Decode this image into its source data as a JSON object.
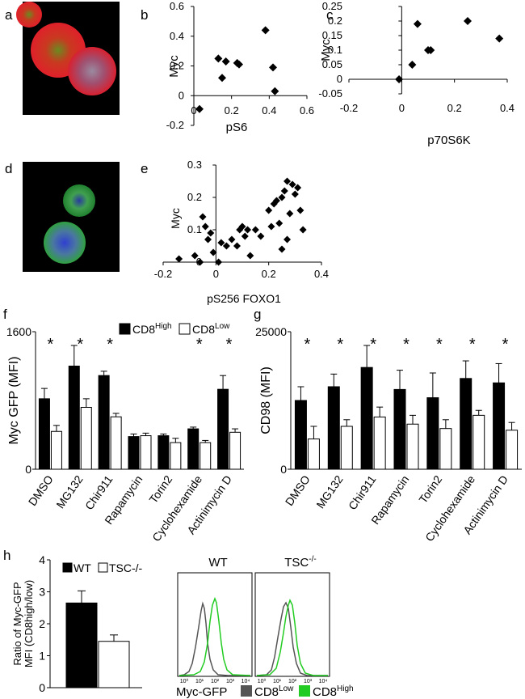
{
  "panel_labels": {
    "a": "a",
    "b": "b",
    "c": "c",
    "d": "d",
    "e": "e",
    "f": "f",
    "g": "g",
    "h": "h"
  },
  "colors": {
    "black": "#000000",
    "green": "#22cc22",
    "grey": "#555555",
    "red": "#e0202a",
    "blue": "#3040d0"
  },
  "chart_data": [
    {
      "id": "b",
      "type": "scatter",
      "title": "",
      "xlabel": "pS6",
      "ylabel": "Myc",
      "xlim": [
        0,
        0.6
      ],
      "ylim": [
        -0.2,
        0.6
      ],
      "xticks": [
        "0",
        "0.2",
        "0.4",
        "0.6"
      ],
      "xtick_values": [
        0,
        0.2,
        0.4,
        0.6
      ],
      "yticks": [
        "-0.2",
        "0",
        "0.2",
        "0.4",
        "0.6"
      ],
      "ytick_values": [
        -0.2,
        0,
        0.2,
        0.4,
        0.6
      ],
      "points": [
        [
          0.03,
          -0.09
        ],
        [
          0.13,
          0.25
        ],
        [
          0.15,
          0.12
        ],
        [
          0.17,
          0.23
        ],
        [
          0.23,
          0.22
        ],
        [
          0.24,
          0.21
        ],
        [
          0.38,
          0.44
        ],
        [
          0.42,
          0.19
        ],
        [
          0.43,
          0.03
        ]
      ]
    },
    {
      "id": "c",
      "type": "scatter",
      "title": "",
      "xlabel": "p70S6K",
      "ylabel": "Myc",
      "xlim": [
        -0.2,
        0.4
      ],
      "ylim": [
        -0.05,
        0.25
      ],
      "xticks": [
        "-0.2",
        "0",
        "0.2",
        "0.4"
      ],
      "xtick_values": [
        -0.2,
        0,
        0.2,
        0.4
      ],
      "yticks": [
        "-0.05",
        "0",
        "0.05",
        "0.1",
        "0.15",
        "0.2",
        "0.25"
      ],
      "ytick_values": [
        -0.05,
        0,
        0.05,
        0.1,
        0.15,
        0.2,
        0.25
      ],
      "points": [
        [
          -0.01,
          0.0
        ],
        [
          0.04,
          0.05
        ],
        [
          0.06,
          0.19
        ],
        [
          0.1,
          0.1
        ],
        [
          0.11,
          0.1
        ],
        [
          0.25,
          0.2
        ],
        [
          0.37,
          0.14
        ]
      ]
    },
    {
      "id": "e",
      "type": "scatter",
      "title": "",
      "xlabel": "pS256 FOXO1",
      "ylabel": "Myc",
      "xlim": [
        -0.2,
        0.4
      ],
      "ylim": [
        0,
        0.3
      ],
      "xticks": [
        "-0.2",
        "0",
        "0.2",
        "0.4"
      ],
      "xtick_values": [
        -0.2,
        0,
        0.2,
        0.4
      ],
      "yticks": [
        "0",
        "0.1",
        "0.2",
        "0.3"
      ],
      "ytick_values": [
        0,
        0.1,
        0.2,
        0.3
      ],
      "points": [
        [
          -0.14,
          0.01
        ],
        [
          -0.08,
          0.02
        ],
        [
          -0.06,
          0.0
        ],
        [
          -0.05,
          0.14
        ],
        [
          -0.04,
          0.11
        ],
        [
          -0.03,
          0.07
        ],
        [
          -0.02,
          0.09
        ],
        [
          -0.01,
          0.03
        ],
        [
          0.01,
          0.0
        ],
        [
          0.02,
          0.06
        ],
        [
          0.04,
          0.05
        ],
        [
          0.06,
          0.07
        ],
        [
          0.08,
          0.05
        ],
        [
          0.09,
          0.1
        ],
        [
          0.1,
          0.11
        ],
        [
          0.11,
          0.08
        ],
        [
          0.12,
          0.1
        ],
        [
          0.13,
          0.02
        ],
        [
          0.15,
          0.1
        ],
        [
          0.17,
          0.08
        ],
        [
          0.2,
          0.16
        ],
        [
          0.21,
          0.11
        ],
        [
          0.22,
          0.18
        ],
        [
          0.23,
          0.19
        ],
        [
          0.24,
          0.12
        ],
        [
          0.25,
          0.2
        ],
        [
          0.26,
          0.22
        ],
        [
          0.27,
          0.25
        ],
        [
          0.28,
          0.15
        ],
        [
          0.29,
          0.24
        ],
        [
          0.3,
          0.21
        ],
        [
          0.31,
          0.23
        ],
        [
          0.32,
          0.16
        ],
        [
          0.33,
          0.1
        ],
        [
          0.25,
          0.04
        ],
        [
          0.27,
          0.07
        ]
      ]
    },
    {
      "id": "f",
      "type": "bar",
      "title": "",
      "xlabel": "",
      "ylabel": "Myc GFP (MFI)",
      "ylim": [
        0,
        1600
      ],
      "yticks": [
        "0",
        "1600"
      ],
      "ytick_values": [
        0,
        1600
      ],
      "categories": [
        "DMSO",
        "MG132",
        "Chir911",
        "Rapamycin",
        "Torin2",
        "Cyclohexamide",
        "Actinimycin D"
      ],
      "series": [
        {
          "name": "CD8",
          "sup": "High",
          "fill": "#000000",
          "values": [
            820,
            1200,
            1090,
            380,
            390,
            470,
            930
          ],
          "errors": [
            120,
            240,
            50,
            30,
            20,
            20,
            160
          ]
        },
        {
          "name": "CD8",
          "sup": "Low",
          "fill": "#ffffff",
          "values": [
            440,
            720,
            610,
            390,
            310,
            310,
            430
          ],
          "errors": [
            70,
            100,
            40,
            30,
            50,
            25,
            40
          ]
        }
      ],
      "significance": [
        "*",
        "*",
        "*",
        "",
        "",
        "*",
        "*"
      ]
    },
    {
      "id": "g",
      "type": "bar",
      "title": "",
      "xlabel": "",
      "ylabel": "CD98 (MFI)",
      "ylim": [
        0,
        25000
      ],
      "yticks": [
        "0",
        "25000"
      ],
      "ytick_values": [
        0,
        25000
      ],
      "categories": [
        "DMSO",
        "MG132",
        "Chir911",
        "Rapamycin",
        "Torin2",
        "Cyclohexamide",
        "Actinimycin D"
      ],
      "series": [
        {
          "name": "CD8",
          "sup": "High",
          "fill": "#000000",
          "values": [
            12500,
            15000,
            18500,
            14500,
            13000,
            16500,
            15700
          ],
          "errors": [
            2500,
            2300,
            4000,
            3500,
            4500,
            3200,
            3500
          ]
        },
        {
          "name": "CD8",
          "sup": "Low",
          "fill": "#ffffff",
          "values": [
            5500,
            7800,
            9500,
            8200,
            7400,
            9800,
            7100
          ],
          "errors": [
            2300,
            1200,
            1800,
            1600,
            1600,
            900,
            1400
          ]
        }
      ],
      "significance": [
        "*",
        "*",
        "*",
        "*",
        "*",
        "*",
        "*"
      ]
    },
    {
      "id": "h",
      "type": "bar",
      "title": "",
      "xlabel": "",
      "ylabel_lines": [
        "Ratio of Myc-GFP",
        "MFI (CD8high/low)"
      ],
      "ylim": [
        0,
        4
      ],
      "yticks": [
        "0",
        "1",
        "2",
        "3",
        "4"
      ],
      "ytick_values": [
        0,
        1,
        2,
        3,
        4
      ],
      "categories": [
        "WT",
        "TSC-/-"
      ],
      "values": [
        2.65,
        1.45
      ],
      "errors": [
        0.38,
        0.2
      ],
      "fills": [
        "#000000",
        "#ffffff"
      ],
      "legend": [
        "WT",
        "TSC-/-"
      ]
    }
  ],
  "histograms": {
    "titles": [
      {
        "base": "WT",
        "sup": ""
      },
      {
        "base": "TSC",
        "sup": "-/-"
      }
    ],
    "xticks": [
      "10⁰",
      "10¹",
      "10²",
      "10³",
      "10⁴"
    ],
    "legend": {
      "label": "Myc-GFP",
      "low": "CD8",
      "low_sup": "Low",
      "high": "CD8",
      "high_sup": "High"
    }
  }
}
